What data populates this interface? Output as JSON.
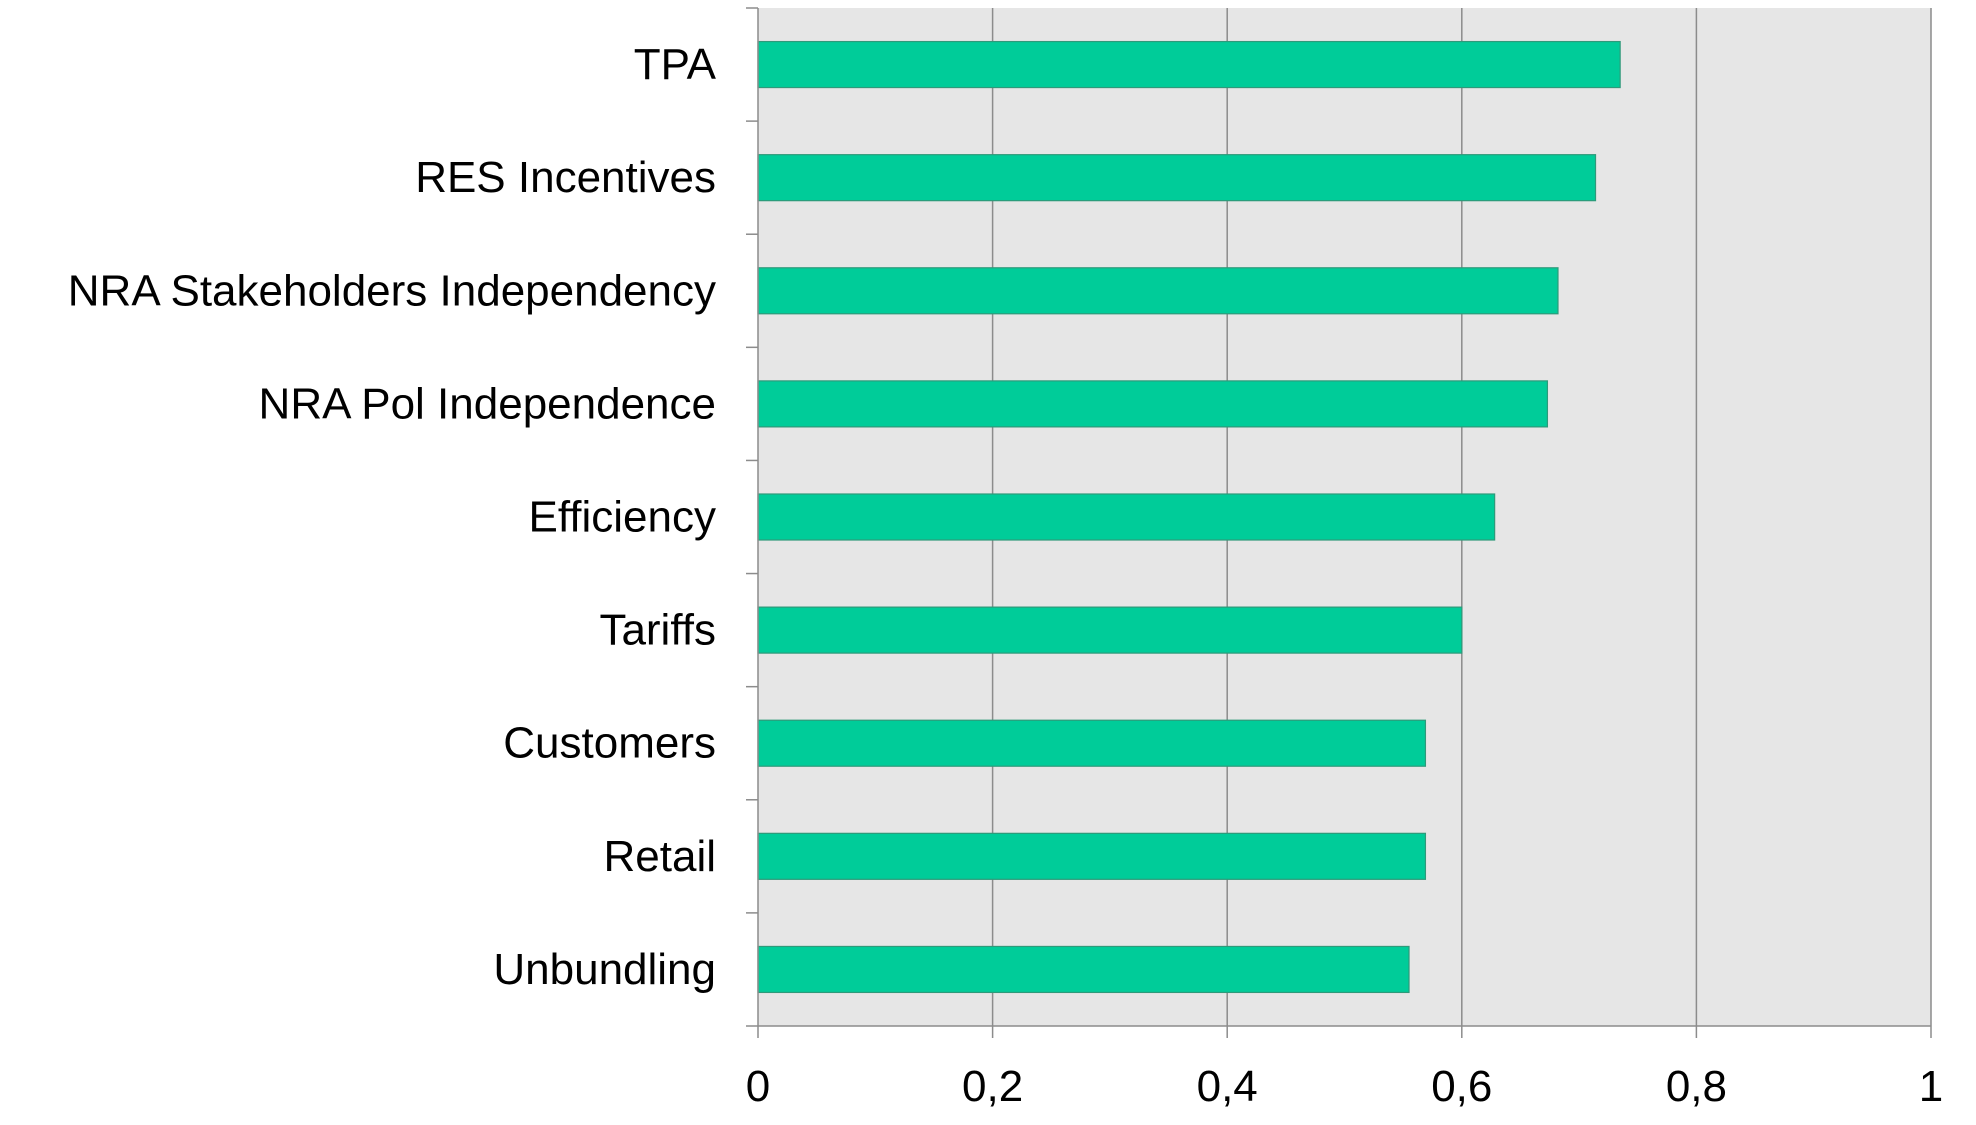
{
  "chart_data": {
    "type": "bar",
    "orientation": "horizontal",
    "categories": [
      "TPA",
      "RES Incentives",
      "NRA Stakeholders Independency",
      "NRA Pol Independence",
      "Efficiency",
      "Tariffs",
      "Customers",
      "Retail",
      "Unbundling"
    ],
    "values": [
      0.735,
      0.714,
      0.682,
      0.673,
      0.628,
      0.6,
      0.569,
      0.569,
      0.555
    ],
    "title": "",
    "xlabel": "",
    "ylabel": "",
    "xlim": [
      0,
      1
    ],
    "x_ticks": [
      0,
      0.2,
      0.4,
      0.6,
      0.8,
      1
    ],
    "x_tick_labels": [
      "0",
      "0,2",
      "0,4",
      "0,6",
      "0,8",
      "1"
    ],
    "grid": "vertical",
    "legend": "none",
    "colors": {
      "bar": "#00cc99",
      "bar_stroke": "#2e9a7a",
      "plot_background": "#e6e6e6",
      "gridline": "#8c8c8c",
      "axis": "#8c8c8c",
      "text": "#000000"
    }
  }
}
